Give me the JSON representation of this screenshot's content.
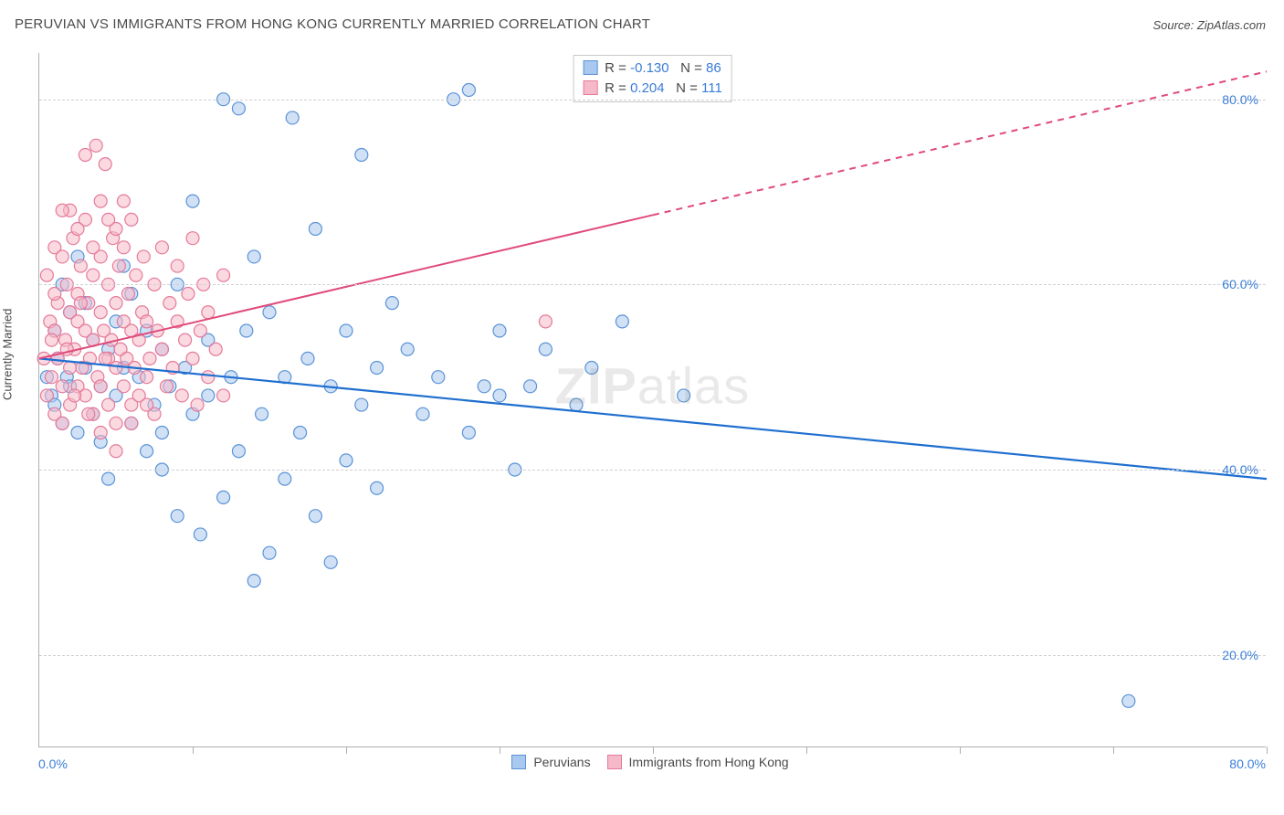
{
  "title": "PERUVIAN VS IMMIGRANTS FROM HONG KONG CURRENTLY MARRIED CORRELATION CHART",
  "source_prefix": "Source: ",
  "source": "ZipAtlas.com",
  "ylabel": "Currently Married",
  "watermark_bold": "ZIP",
  "watermark_rest": "atlas",
  "chart": {
    "type": "scatter",
    "xlim": [
      0,
      80
    ],
    "ylim": [
      10,
      85
    ],
    "x_ticks": [
      10,
      20,
      30,
      40,
      50,
      60,
      70,
      80
    ],
    "y_grid": [
      20,
      40,
      60,
      80
    ],
    "y_tick_labels": [
      "20.0%",
      "40.0%",
      "60.0%",
      "80.0%"
    ],
    "x_min_label": "0.0%",
    "x_max_label": "80.0%",
    "background_color": "#ffffff",
    "grid_color": "#d0d0d0",
    "axis_color": "#b0b0b0",
    "tick_label_color": "#3b7dd8",
    "marker_radius": 7,
    "marker_opacity": 0.55,
    "series": [
      {
        "key": "peruvians",
        "label": "Peruvians",
        "fill": "#a9c8ef",
        "stroke": "#5b93d6",
        "R": "-0.130",
        "N": "86",
        "trend": {
          "x1": 0,
          "y1": 52,
          "x2": 80,
          "y2": 39,
          "color": "#1f6fd0",
          "width": 2.2,
          "dashed_from_x": null
        },
        "points": [
          [
            0.5,
            50
          ],
          [
            0.8,
            48
          ],
          [
            1,
            55
          ],
          [
            1,
            47
          ],
          [
            1.2,
            52
          ],
          [
            1.5,
            60
          ],
          [
            1.5,
            45
          ],
          [
            1.8,
            50
          ],
          [
            2,
            57
          ],
          [
            2,
            49
          ],
          [
            2.5,
            44
          ],
          [
            2.5,
            63
          ],
          [
            3,
            51
          ],
          [
            3,
            58
          ],
          [
            3.5,
            46
          ],
          [
            3.5,
            54
          ],
          [
            4,
            49
          ],
          [
            4,
            43
          ],
          [
            4.5,
            53
          ],
          [
            4.5,
            39
          ],
          [
            5,
            56
          ],
          [
            5,
            48
          ],
          [
            5.5,
            62
          ],
          [
            5.5,
            51
          ],
          [
            6,
            45
          ],
          [
            6,
            59
          ],
          [
            6.5,
            50
          ],
          [
            7,
            42
          ],
          [
            7,
            55
          ],
          [
            7.5,
            47
          ],
          [
            8,
            53
          ],
          [
            8,
            40
          ],
          [
            8.5,
            49
          ],
          [
            9,
            35
          ],
          [
            9,
            60
          ],
          [
            9.5,
            51
          ],
          [
            10,
            46
          ],
          [
            10,
            69
          ],
          [
            10.5,
            33
          ],
          [
            11,
            54
          ],
          [
            11,
            48
          ],
          [
            12,
            80
          ],
          [
            12,
            37
          ],
          [
            12.5,
            50
          ],
          [
            13,
            79
          ],
          [
            13,
            42
          ],
          [
            13.5,
            55
          ],
          [
            14,
            63
          ],
          [
            14.5,
            46
          ],
          [
            15,
            31
          ],
          [
            15,
            57
          ],
          [
            16,
            50
          ],
          [
            16,
            39
          ],
          [
            16.5,
            78
          ],
          [
            17,
            44
          ],
          [
            17.5,
            52
          ],
          [
            18,
            66
          ],
          [
            18,
            35
          ],
          [
            19,
            49
          ],
          [
            19,
            30
          ],
          [
            20,
            55
          ],
          [
            20,
            41
          ],
          [
            21,
            47
          ],
          [
            21,
            74
          ],
          [
            22,
            38
          ],
          [
            22,
            51
          ],
          [
            23,
            58
          ],
          [
            24,
            53
          ],
          [
            25,
            46
          ],
          [
            26,
            50
          ],
          [
            27,
            80
          ],
          [
            28,
            44
          ],
          [
            29,
            49
          ],
          [
            30,
            48
          ],
          [
            30,
            55
          ],
          [
            31,
            40
          ],
          [
            32,
            49
          ],
          [
            33,
            53
          ],
          [
            35,
            47
          ],
          [
            36,
            51
          ],
          [
            28,
            81
          ],
          [
            14,
            28
          ],
          [
            8,
            44
          ],
          [
            71,
            15
          ],
          [
            42,
            48
          ],
          [
            38,
            56
          ]
        ]
      },
      {
        "key": "hongkong",
        "label": "Immigrants from Hong Kong",
        "fill": "#f5b9c9",
        "stroke": "#e57a9a",
        "R": "0.204",
        "N": "111",
        "trend": {
          "x1": 0,
          "y1": 52,
          "x2": 80,
          "y2": 83,
          "color": "#e04a7a",
          "width": 2,
          "dashed_from_x": 40
        },
        "points": [
          [
            0.3,
            52
          ],
          [
            0.5,
            61
          ],
          [
            0.5,
            48
          ],
          [
            0.7,
            56
          ],
          [
            0.8,
            50
          ],
          [
            1,
            64
          ],
          [
            1,
            46
          ],
          [
            1,
            55
          ],
          [
            1.2,
            58
          ],
          [
            1.2,
            52
          ],
          [
            1.5,
            49
          ],
          [
            1.5,
            63
          ],
          [
            1.5,
            45
          ],
          [
            1.7,
            54
          ],
          [
            1.8,
            60
          ],
          [
            2,
            51
          ],
          [
            2,
            57
          ],
          [
            2,
            47
          ],
          [
            2.2,
            65
          ],
          [
            2.3,
            53
          ],
          [
            2.5,
            59
          ],
          [
            2.5,
            49
          ],
          [
            2.5,
            56
          ],
          [
            2.7,
            62
          ],
          [
            2.8,
            51
          ],
          [
            3,
            74
          ],
          [
            3,
            48
          ],
          [
            3,
            55
          ],
          [
            3.2,
            58
          ],
          [
            3.3,
            52
          ],
          [
            3.5,
            61
          ],
          [
            3.5,
            46
          ],
          [
            3.5,
            54
          ],
          [
            3.7,
            75
          ],
          [
            3.8,
            50
          ],
          [
            4,
            57
          ],
          [
            4,
            63
          ],
          [
            4,
            49
          ],
          [
            4.2,
            55
          ],
          [
            4.3,
            73
          ],
          [
            4.5,
            52
          ],
          [
            4.5,
            60
          ],
          [
            4.5,
            47
          ],
          [
            4.7,
            54
          ],
          [
            4.8,
            65
          ],
          [
            5,
            51
          ],
          [
            5,
            58
          ],
          [
            5,
            45
          ],
          [
            5.2,
            62
          ],
          [
            5.3,
            53
          ],
          [
            5.5,
            56
          ],
          [
            5.5,
            49
          ],
          [
            5.5,
            64
          ],
          [
            5.7,
            52
          ],
          [
            5.8,
            59
          ],
          [
            6,
            47
          ],
          [
            6,
            55
          ],
          [
            6,
            67
          ],
          [
            6.2,
            51
          ],
          [
            6.3,
            61
          ],
          [
            6.5,
            54
          ],
          [
            6.5,
            48
          ],
          [
            6.7,
            57
          ],
          [
            6.8,
            63
          ],
          [
            7,
            50
          ],
          [
            7,
            56
          ],
          [
            7.2,
            52
          ],
          [
            7.5,
            60
          ],
          [
            7.5,
            46
          ],
          [
            7.7,
            55
          ],
          [
            8,
            53
          ],
          [
            8,
            64
          ],
          [
            8.3,
            49
          ],
          [
            8.5,
            58
          ],
          [
            8.7,
            51
          ],
          [
            9,
            56
          ],
          [
            9,
            62
          ],
          [
            9.3,
            48
          ],
          [
            9.5,
            54
          ],
          [
            9.7,
            59
          ],
          [
            10,
            52
          ],
          [
            10,
            65
          ],
          [
            10.3,
            47
          ],
          [
            10.5,
            55
          ],
          [
            10.7,
            60
          ],
          [
            11,
            50
          ],
          [
            11,
            57
          ],
          [
            11.5,
            53
          ],
          [
            12,
            61
          ],
          [
            12,
            48
          ],
          [
            2,
            68
          ],
          [
            3,
            67
          ],
          [
            4,
            69
          ],
          [
            5,
            66
          ],
          [
            1.5,
            68
          ],
          [
            2.5,
            66
          ],
          [
            3.5,
            64
          ],
          [
            4.5,
            67
          ],
          [
            5.5,
            69
          ],
          [
            1,
            59
          ],
          [
            1.8,
            53
          ],
          [
            2.3,
            48
          ],
          [
            3.2,
            46
          ],
          [
            4.3,
            52
          ],
          [
            0.8,
            54
          ],
          [
            2.7,
            58
          ],
          [
            5,
            42
          ],
          [
            6,
            45
          ],
          [
            7,
            47
          ],
          [
            4,
            44
          ],
          [
            33,
            56
          ]
        ]
      }
    ],
    "legend_bottom": {
      "items": [
        {
          "series": "peruvians"
        },
        {
          "series": "hongkong"
        }
      ]
    },
    "stats_box": {
      "R_label": "R =",
      "N_label": "N =",
      "border_color": "#c9c9c9"
    }
  }
}
